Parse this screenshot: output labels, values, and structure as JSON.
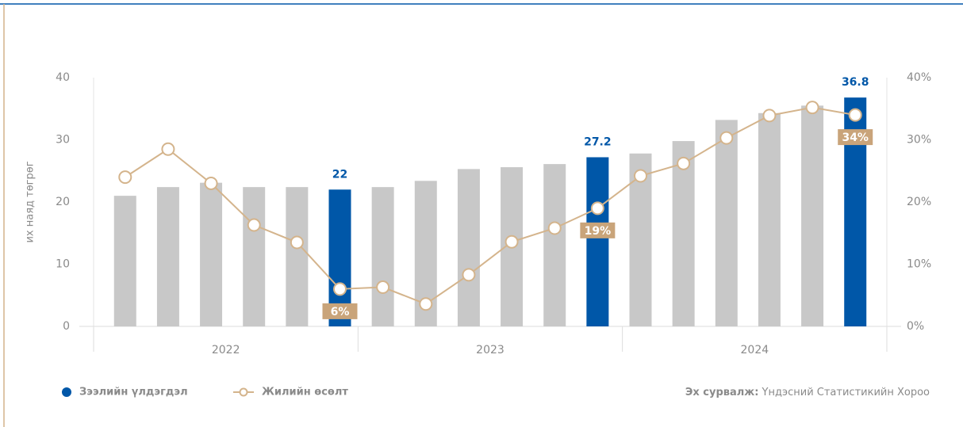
{
  "chart_data": {
    "type": "bar-line",
    "y_label": "их наяд төгрөг",
    "categories": [
      null,
      null,
      null,
      null,
      null,
      null,
      null,
      null,
      null,
      null,
      null,
      null,
      null,
      null,
      null,
      null,
      null,
      null
    ],
    "groups": [
      "2022",
      "2023",
      "2024"
    ],
    "series": [
      {
        "name": "Зээлийн үлдэгдэл",
        "type": "bar",
        "color": "#c8c8c8",
        "highlight_color": "#0057a8",
        "values": [
          21,
          22.4,
          23.1,
          22.4,
          22.4,
          22,
          22.4,
          23.4,
          25.3,
          25.6,
          26.1,
          27.2,
          27.8,
          29.8,
          33.2,
          34.3,
          35.5,
          36.8
        ],
        "value_labels": [
          null,
          null,
          null,
          null,
          null,
          "22",
          null,
          null,
          null,
          null,
          null,
          "27.2",
          null,
          null,
          null,
          null,
          null,
          "36.8"
        ]
      },
      {
        "name": "Жилийн өсөлт",
        "type": "line",
        "axis": "y2",
        "color": "#d4b48c",
        "label_color": "#c9a47a",
        "values": [
          24,
          28.5,
          23,
          16.3,
          13.5,
          6,
          6.3,
          3.6,
          8.3,
          13.6,
          15.8,
          19,
          24.2,
          26.2,
          30.3,
          33.9,
          35.2,
          34
        ],
        "value_labels": [
          null,
          null,
          null,
          null,
          null,
          "6%",
          null,
          null,
          null,
          null,
          null,
          "19%",
          null,
          null,
          null,
          null,
          null,
          "34%"
        ]
      }
    ],
    "ylim": [
      0,
      40
    ],
    "yticks": [
      0,
      10,
      20,
      30,
      40
    ],
    "y2lim": [
      0,
      40
    ],
    "y2ticks": [
      {
        "value": 0,
        "label": "0%"
      },
      {
        "value": 10,
        "label": "10%"
      },
      {
        "value": 20,
        "label": "20%"
      },
      {
        "value": 30,
        "label": "30%"
      },
      {
        "value": 40,
        "label": "40%"
      }
    ],
    "source_label": "Эх сурвалж:",
    "source": "Үндэсний Статистикийн Хороо"
  }
}
